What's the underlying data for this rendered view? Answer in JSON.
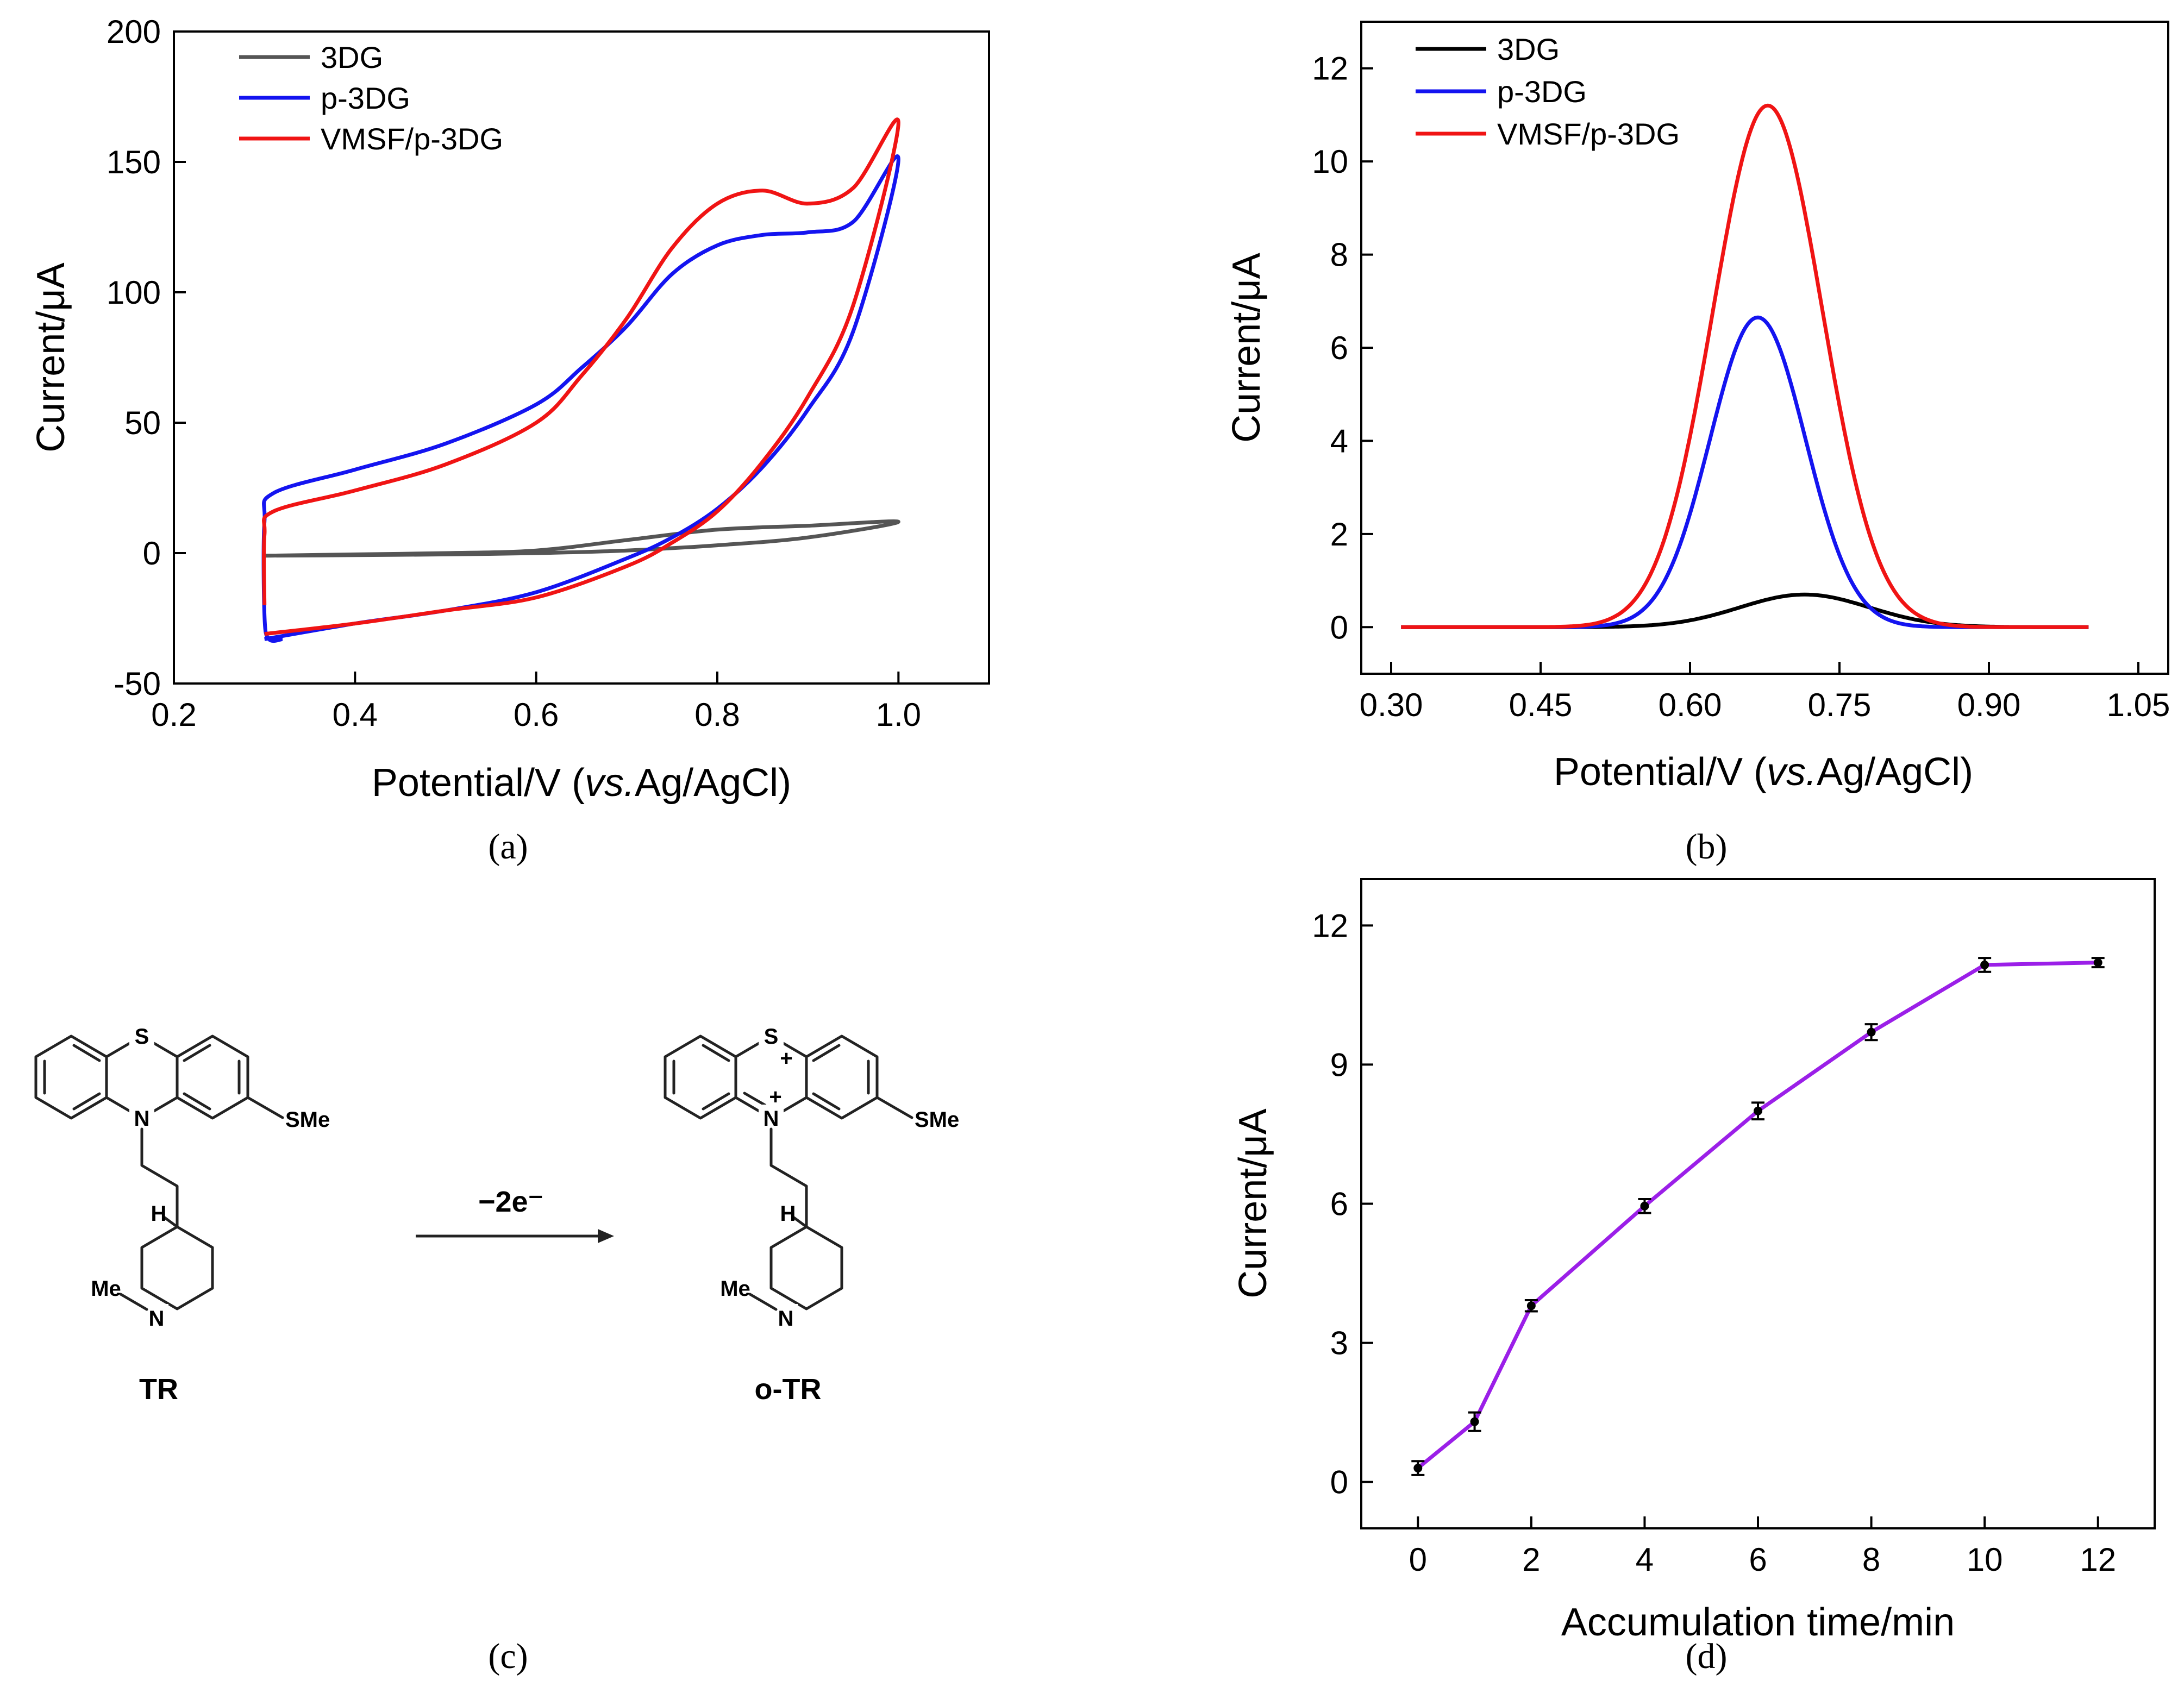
{
  "figure": {
    "panel_labels": {
      "a": "(a)",
      "b": "(b)",
      "c": "(c)",
      "d": "(d)"
    }
  },
  "chart_data": [
    {
      "id": "a",
      "type": "line",
      "subtype": "cyclic voltammogram",
      "title": "",
      "xlabel": "Potential/V (vs.Ag/AgCl)",
      "ylabel": "Current/μA",
      "xlim": [
        0.2,
        1.1
      ],
      "ylim": [
        -50,
        200
      ],
      "xticks": [
        0.2,
        0.4,
        0.6,
        0.8,
        1.0
      ],
      "xtick_labels": [
        "0.2",
        "0.4",
        "0.6",
        "0.8",
        "1.0"
      ],
      "yticks": [
        -50,
        0,
        50,
        100,
        150,
        200
      ],
      "ytick_labels": [
        "-50",
        "0",
        "50",
        "100",
        "150",
        "200"
      ],
      "legend": "top-left",
      "series": [
        {
          "name": "3DG",
          "color": "#555555",
          "x": [
            0.3,
            0.4,
            0.5,
            0.6,
            0.7,
            0.8,
            0.9,
            1.0,
            0.9,
            0.8,
            0.7,
            0.6,
            0.5,
            0.4,
            0.3
          ],
          "y": [
            -1,
            -0.5,
            0,
            1,
            5,
            9,
            10.5,
            12,
            6,
            3,
            1,
            0,
            -0.5,
            -0.8,
            -1
          ]
        },
        {
          "name": "p-3DG",
          "color": "#1414f0",
          "x": [
            0.3,
            0.4,
            0.5,
            0.6,
            0.7,
            0.75,
            0.8,
            0.85,
            0.9,
            0.95,
            1.0,
            0.95,
            0.9,
            0.85,
            0.8,
            0.75,
            0.7,
            0.65,
            0.6,
            0.5,
            0.4,
            0.31,
            0.3,
            0.3,
            0.305,
            0.32
          ],
          "y": [
            -33,
            -27,
            -22,
            -15,
            -2,
            6,
            17,
            33,
            55,
            85,
            151,
            127,
            123,
            122,
            118,
            107,
            87,
            71,
            57,
            42,
            32,
            23,
            12,
            -24,
            -33,
            -33
          ],
          "closed_loop_order": "reverse_then_forward"
        },
        {
          "name": "VMSF/p-3DG",
          "color": "#f01414",
          "x": [
            0.3,
            0.4,
            0.5,
            0.6,
            0.7,
            0.75,
            0.8,
            0.85,
            0.9,
            0.95,
            1.0,
            0.95,
            0.9,
            0.85,
            0.8,
            0.75,
            0.7,
            0.65,
            0.6,
            0.5,
            0.4,
            0.31,
            0.3,
            0.3
          ],
          "y": [
            -31,
            -27,
            -22,
            -17,
            -5,
            4,
            16,
            35,
            60,
            95,
            165,
            140,
            134,
            139,
            134,
            117,
            90,
            68,
            50,
            34,
            24,
            16,
            7,
            -20
          ]
        }
      ]
    },
    {
      "id": "b",
      "type": "line",
      "subtype": "differential pulse voltammogram",
      "title": "",
      "xlabel": "Potential/V (vs.Ag/AgCl)",
      "ylabel": "Current/μA",
      "xlim": [
        0.27,
        1.08
      ],
      "ylim": [
        -1,
        13
      ],
      "xticks": [
        0.3,
        0.45,
        0.6,
        0.75,
        0.9,
        1.05
      ],
      "xtick_labels": [
        "0.30",
        "0.45",
        "0.60",
        "0.75",
        "0.90",
        "1.05"
      ],
      "yticks": [
        0,
        2,
        4,
        6,
        8,
        10,
        12
      ],
      "ytick_labels": [
        "0",
        "2",
        "4",
        "6",
        "8",
        "10",
        "12"
      ],
      "legend": "top-left",
      "series": [
        {
          "name": "3DG",
          "color": "#000000",
          "peak_potential": 0.715,
          "peak_current": 0.7,
          "width": 0.065,
          "start": 0.31,
          "end": 1.0
        },
        {
          "name": "p-3DG",
          "color": "#1414f0",
          "peak_potential": 0.668,
          "peak_current": 6.65,
          "width": 0.048,
          "start": 0.31,
          "end": 1.0
        },
        {
          "name": "VMSF/p-3DG",
          "color": "#f01414",
          "peak_potential": 0.678,
          "peak_current": 11.2,
          "width": 0.055,
          "start": 0.31,
          "end": 1.0
        }
      ]
    },
    {
      "id": "d",
      "type": "line",
      "subtype": "line with markers and error bars",
      "title": "",
      "xlabel": "Accumulation time/min",
      "ylabel": "Current/μA",
      "xlim": [
        -1,
        13
      ],
      "ylim": [
        -1,
        13
      ],
      "xticks": [
        0,
        2,
        4,
        6,
        8,
        10,
        12
      ],
      "xtick_labels": [
        "0",
        "2",
        "4",
        "6",
        "8",
        "10",
        "12"
      ],
      "yticks": [
        0,
        3,
        6,
        9,
        12
      ],
      "ytick_labels": [
        "0",
        "3",
        "6",
        "9",
        "12"
      ],
      "line_color": "#9b1fe8",
      "marker_color": "#000000",
      "x": [
        0,
        1,
        2,
        4,
        6,
        8,
        10,
        12
      ],
      "y": [
        0.3,
        1.3,
        3.8,
        5.95,
        8.0,
        9.7,
        11.15,
        11.2
      ],
      "err": [
        0.15,
        0.2,
        0.12,
        0.15,
        0.18,
        0.17,
        0.15,
        0.1
      ]
    }
  ],
  "scheme": {
    "reactant_label": "TR",
    "product_label": "o-TR",
    "arrow_label": "−2e⁻",
    "atoms": {
      "S": "S",
      "N": "N",
      "SMe": "SMe",
      "H": "H",
      "Me": "Me",
      "plus": "+"
    }
  }
}
